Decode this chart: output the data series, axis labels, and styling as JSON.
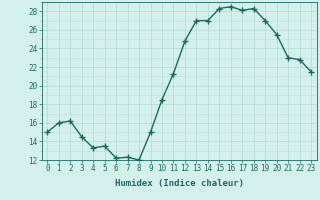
{
  "x": [
    0,
    1,
    2,
    3,
    4,
    5,
    6,
    7,
    8,
    9,
    10,
    11,
    12,
    13,
    14,
    15,
    16,
    17,
    18,
    19,
    20,
    21,
    22,
    23
  ],
  "y": [
    15.0,
    16.0,
    16.2,
    14.5,
    13.3,
    13.5,
    12.2,
    12.3,
    12.0,
    15.0,
    18.5,
    21.3,
    24.8,
    27.0,
    27.0,
    28.3,
    28.5,
    28.1,
    28.3,
    27.0,
    25.5,
    23.0,
    22.8,
    21.5
  ],
  "line_color": "#1a6b5e",
  "marker": "+",
  "marker_size": 4,
  "bg_color": "#d4f0eb",
  "grid_color": "#b8dcd6",
  "xlabel": "Humidex (Indice chaleur)",
  "ylim": [
    12,
    29
  ],
  "xlim": [
    -0.5,
    23.5
  ],
  "yticks": [
    12,
    14,
    16,
    18,
    20,
    22,
    24,
    26,
    28
  ],
  "xtick_labels": [
    "0",
    "1",
    "2",
    "3",
    "4",
    "5",
    "6",
    "7",
    "8",
    "9",
    "10",
    "11",
    "12",
    "13",
    "14",
    "15",
    "16",
    "17",
    "18",
    "19",
    "20",
    "21",
    "22",
    "23"
  ],
  "xlabel_fontsize": 6.5,
  "tick_fontsize": 5.5,
  "line_width": 1.0
}
